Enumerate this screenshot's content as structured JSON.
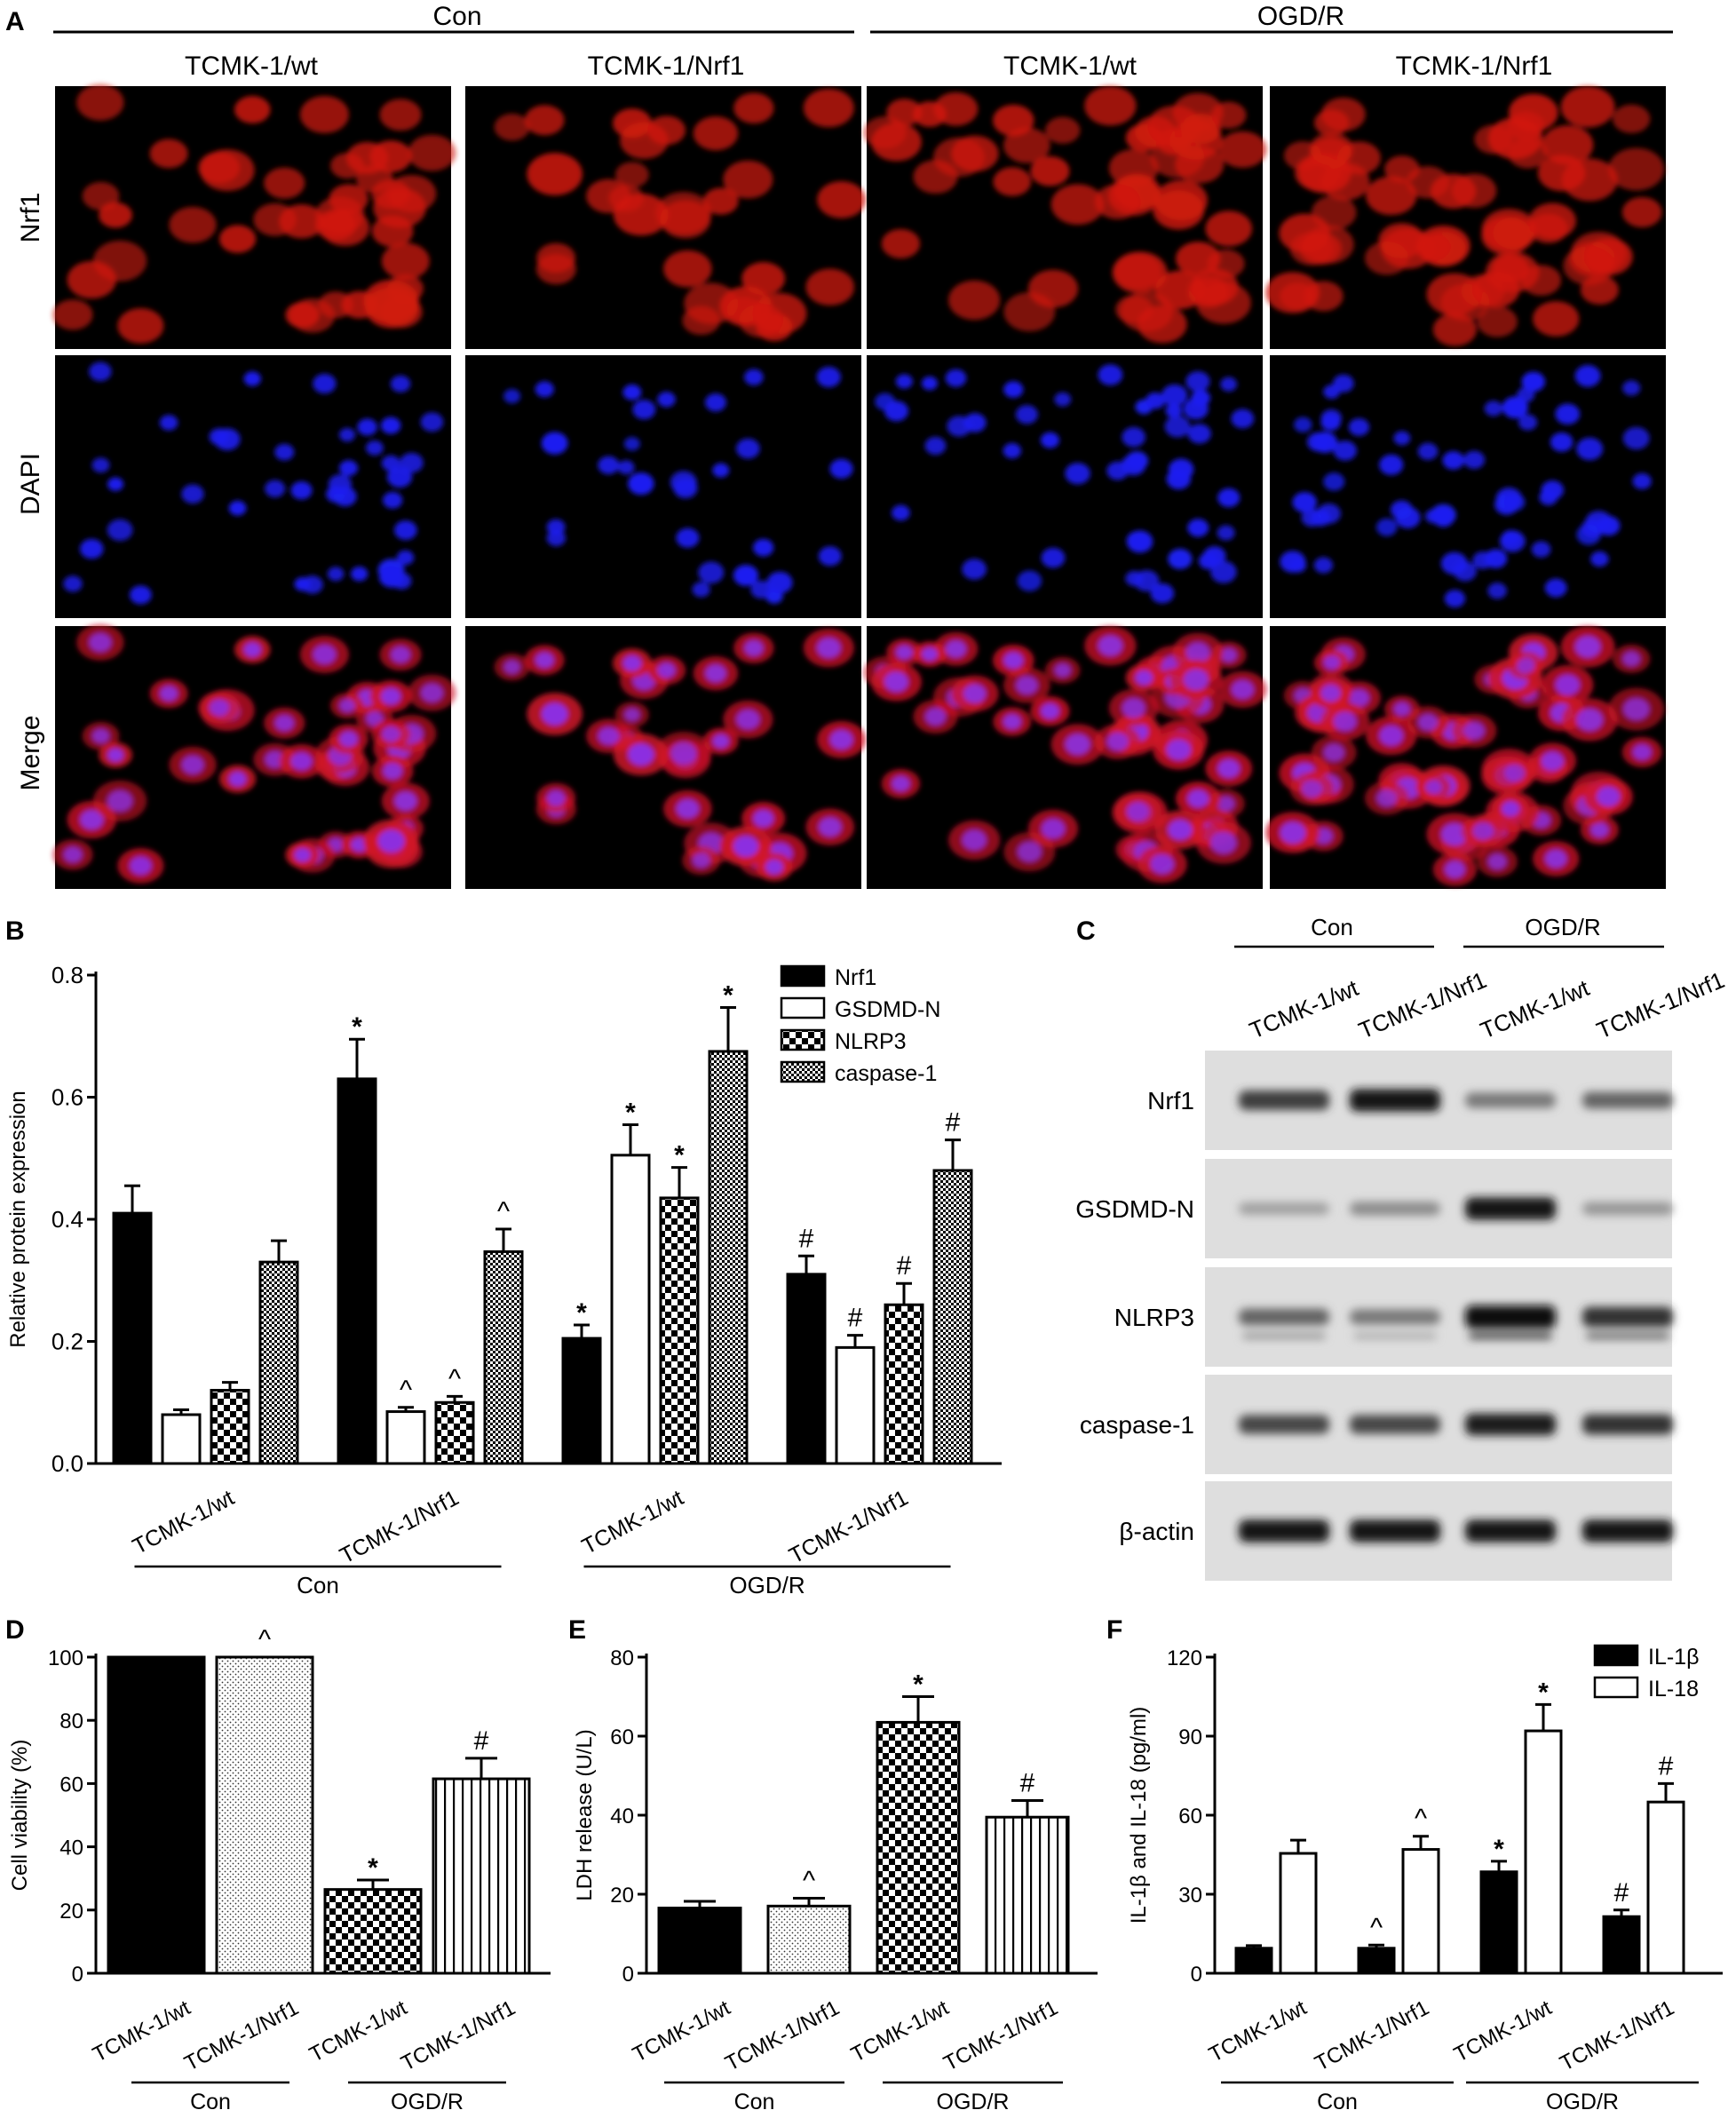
{
  "panels": {
    "A": {
      "letter": "A",
      "groups": [
        "Con",
        "OGD/R"
      ],
      "columns": [
        "TCMK-1/wt",
        "TCMK-1/Nrf1",
        "TCMK-1/wt",
        "TCMK-1/Nrf1"
      ],
      "rows": [
        "Nrf1",
        "DAPI",
        "Merge"
      ],
      "colors": {
        "nrf1": "#d11a0e",
        "dapi": "#1d1ff0",
        "merge_bg": "#d01428",
        "merge_nucleus": "#8c2fe0"
      }
    },
    "B": {
      "letter": "B"
    },
    "C": {
      "letter": "C",
      "groups": [
        "Con",
        "OGD/R"
      ],
      "lanes": [
        "TCMK-1/wt",
        "TCMK-1/Nrf1",
        "TCMK-1/wt",
        "TCMK-1/Nrf1"
      ],
      "bands": [
        "Nrf1",
        "GSDMD-N",
        "NLRP3",
        "caspase-1",
        "β-actin"
      ],
      "band_intensity": [
        [
          0.75,
          0.95,
          0.45,
          0.55
        ],
        [
          0.25,
          0.35,
          0.95,
          0.3
        ],
        [
          0.55,
          0.45,
          1.0,
          0.8
        ],
        [
          0.7,
          0.7,
          0.9,
          0.8
        ],
        [
          0.95,
          0.95,
          0.95,
          0.95
        ]
      ]
    },
    "D": {
      "letter": "D"
    },
    "E": {
      "letter": "E"
    },
    "F": {
      "letter": "F"
    }
  },
  "chart_data": [
    {
      "panel": "B",
      "type": "bar",
      "ylabel": "Relative protein expression",
      "ylim": [
        0,
        0.8
      ],
      "yticks": [
        "0.0",
        "0.2",
        "0.4",
        "0.6",
        "0.8"
      ],
      "categories": [
        "TCMK-1/wt",
        "TCMK-1/Nrf1",
        "TCMK-1/wt",
        "TCMK-1/Nrf1"
      ],
      "groups": [
        {
          "label": "Con",
          "span": [
            0,
            1
          ]
        },
        {
          "label": "OGD/R",
          "span": [
            2,
            3
          ]
        }
      ],
      "legend_position": "top-right",
      "series": [
        {
          "name": "Nrf1",
          "fill": "solid",
          "values": [
            0.41,
            0.63,
            0.205,
            0.31
          ],
          "errors": [
            0.045,
            0.065,
            0.022,
            0.03
          ],
          "marks": [
            "",
            "*",
            "*",
            "#"
          ]
        },
        {
          "name": "GSDMD-N",
          "fill": "white",
          "values": [
            0.08,
            0.085,
            0.505,
            0.19
          ],
          "errors": [
            0.008,
            0.007,
            0.05,
            0.02
          ],
          "marks": [
            "",
            "^",
            "*",
            "#"
          ]
        },
        {
          "name": "NLRP3",
          "fill": "checker-large",
          "values": [
            0.12,
            0.1,
            0.435,
            0.26
          ],
          "errors": [
            0.013,
            0.01,
            0.05,
            0.035
          ],
          "marks": [
            "",
            "^",
            "*",
            "#"
          ]
        },
        {
          "name": "caspase-1",
          "fill": "checker-small",
          "values": [
            0.33,
            0.347,
            0.675,
            0.48
          ],
          "errors": [
            0.035,
            0.037,
            0.072,
            0.05
          ],
          "marks": [
            "",
            "^",
            "*",
            "#"
          ]
        }
      ]
    },
    {
      "panel": "D",
      "type": "bar",
      "ylabel": "Cell viability (%)",
      "ylim": [
        0,
        100
      ],
      "yticks": [
        "0",
        "20",
        "40",
        "60",
        "80",
        "100"
      ],
      "categories": [
        "TCMK-1/wt",
        "TCMK-1/Nrf1",
        "TCMK-1/wt",
        "TCMK-1/Nrf1"
      ],
      "groups": [
        {
          "label": "Con",
          "span": [
            0,
            1
          ]
        },
        {
          "label": "OGD/R",
          "span": [
            2,
            3
          ]
        }
      ],
      "fills": [
        "solid",
        "dots",
        "checker-large",
        "vstripes"
      ],
      "values": [
        100,
        100,
        26.5,
        61.5
      ],
      "errors": [
        0,
        0,
        3,
        6.5
      ],
      "marks": [
        "",
        "^",
        "*",
        "#"
      ]
    },
    {
      "panel": "E",
      "type": "bar",
      "ylabel": "LDH release (U/L)",
      "ylim": [
        0,
        80
      ],
      "yticks": [
        "0",
        "20",
        "40",
        "60",
        "80"
      ],
      "categories": [
        "TCMK-1/wt",
        "TCMK-1/Nrf1",
        "TCMK-1/wt",
        "TCMK-1/Nrf1"
      ],
      "groups": [
        {
          "label": "Con",
          "span": [
            0,
            1
          ]
        },
        {
          "label": "OGD/R",
          "span": [
            2,
            3
          ]
        }
      ],
      "fills": [
        "solid",
        "dots",
        "checker-large",
        "vstripes"
      ],
      "values": [
        16.5,
        17,
        63.5,
        39.5
      ],
      "errors": [
        1.7,
        2,
        6.5,
        4.2
      ],
      "marks": [
        "",
        "^",
        "*",
        "#"
      ]
    },
    {
      "panel": "F",
      "type": "bar",
      "ylabel": "IL-1β and IL-18 (pg/ml)",
      "ylim": [
        0,
        120
      ],
      "yticks": [
        "0",
        "30",
        "60",
        "90",
        "120"
      ],
      "categories": [
        "TCMK-1/wt",
        "TCMK-1/Nrf1",
        "TCMK-1/wt",
        "TCMK-1/Nrf1"
      ],
      "groups": [
        {
          "label": "Con",
          "span": [
            0,
            1
          ]
        },
        {
          "label": "OGD/R",
          "span": [
            2,
            3
          ]
        }
      ],
      "legend_position": "top-right",
      "series": [
        {
          "name": "IL-1β",
          "fill": "solid",
          "values": [
            9.5,
            9.5,
            38.5,
            21.5
          ],
          "errors": [
            1,
            1.2,
            4,
            2.5
          ],
          "marks": [
            "",
            "^",
            "*",
            "#"
          ]
        },
        {
          "name": "IL-18",
          "fill": "white",
          "values": [
            45.5,
            47,
            92,
            65
          ],
          "errors": [
            5,
            5,
            10,
            7
          ],
          "marks": [
            "",
            "^",
            "*",
            "#"
          ]
        }
      ]
    }
  ]
}
